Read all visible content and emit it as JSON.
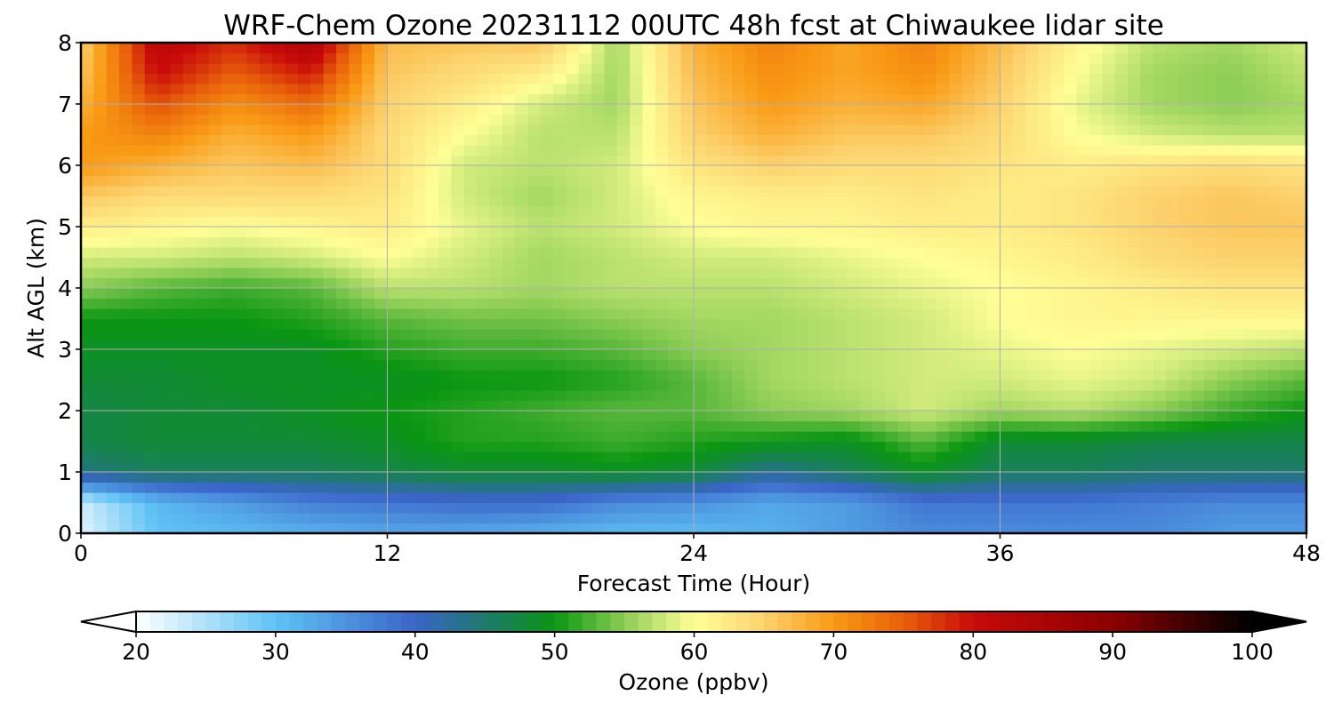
{
  "chart_data": {
    "type": "heatmap",
    "title": "WRF-Chem Ozone  20231112 00UTC 48h fcst at Chiwaukee lidar site",
    "xlabel": "Forecast Time (Hour)",
    "ylabel": "Alt AGL (km)",
    "xlim": [
      0,
      48
    ],
    "ylim": [
      0,
      8
    ],
    "x_ticks": [
      "0",
      "12",
      "24",
      "36",
      "48"
    ],
    "x_tick_values": [
      0,
      12,
      24,
      36,
      48
    ],
    "y_ticks": [
      "0",
      "1",
      "2",
      "3",
      "4",
      "5",
      "6",
      "7",
      "8"
    ],
    "y_tick_values": [
      0,
      1,
      2,
      3,
      4,
      5,
      6,
      7,
      8
    ],
    "grid": true,
    "x": [
      0,
      3,
      6,
      9,
      12,
      15,
      18,
      21,
      24,
      27,
      30,
      33,
      36,
      39,
      42,
      45,
      48
    ],
    "y": [
      0,
      0.5,
      1,
      1.5,
      2,
      2.5,
      3,
      3.5,
      4,
      4.5,
      5,
      5.5,
      6,
      6.5,
      7,
      7.5,
      8
    ],
    "z": [
      [
        22,
        30,
        31,
        32,
        33,
        33,
        32,
        31,
        31,
        32,
        34,
        36,
        36,
        36,
        36,
        34,
        34
      ],
      [
        23,
        31,
        34,
        37,
        38,
        39,
        39,
        36,
        35,
        33,
        34,
        38,
        38,
        38,
        37,
        36,
        36
      ],
      [
        44,
        46,
        46,
        46,
        47,
        48,
        48,
        49,
        48,
        43,
        46,
        49,
        46,
        46,
        45,
        45,
        45
      ],
      [
        47,
        48,
        48,
        48,
        49,
        51,
        51,
        52,
        51,
        50,
        49,
        53,
        48,
        48,
        47,
        47,
        47
      ],
      [
        47,
        48,
        48,
        49,
        50,
        51,
        52,
        53,
        53,
        55,
        56,
        58,
        56,
        57,
        55,
        52,
        50
      ],
      [
        48,
        48,
        49,
        49,
        49,
        50,
        50,
        51,
        53,
        56,
        57,
        58,
        58,
        59,
        58,
        55,
        53
      ],
      [
        49,
        49,
        49,
        49,
        51,
        52,
        52,
        53,
        55,
        56,
        57,
        58,
        59,
        60,
        59,
        58,
        57
      ],
      [
        50,
        50,
        50,
        51,
        53,
        54,
        54,
        55,
        56,
        56,
        57,
        58,
        60,
        61,
        61,
        61,
        61
      ],
      [
        55,
        53,
        52,
        53,
        57,
        57,
        56,
        57,
        57,
        57,
        58,
        59,
        60,
        61,
        62,
        63,
        63
      ],
      [
        58,
        58,
        57,
        58,
        60,
        58,
        56,
        57,
        58,
        58,
        59,
        60,
        61,
        62,
        64,
        65,
        65
      ],
      [
        62,
        61,
        60,
        61,
        62,
        59,
        57,
        58,
        60,
        61,
        61,
        62,
        62,
        63,
        65,
        66,
        66
      ],
      [
        66,
        64,
        64,
        64,
        63,
        58,
        56,
        58,
        61,
        62,
        62,
        63,
        62,
        63,
        65,
        66,
        65
      ],
      [
        70,
        68,
        66,
        67,
        64,
        58,
        57,
        58,
        63,
        65,
        64,
        64,
        63,
        62,
        63,
        64,
        63
      ],
      [
        70,
        72,
        68,
        70,
        64,
        60,
        57,
        57,
        65,
        68,
        66,
        66,
        64,
        60,
        58,
        57,
        57
      ],
      [
        68,
        76,
        71,
        74,
        65,
        62,
        58,
        56,
        66,
        70,
        68,
        69,
        65,
        59,
        56,
        55,
        56
      ],
      [
        66,
        80,
        75,
        79,
        66,
        64,
        62,
        56,
        67,
        71,
        69,
        71,
        66,
        60,
        56,
        55,
        57
      ],
      [
        65,
        82,
        78,
        84,
        67,
        66,
        66,
        56,
        68,
        72,
        69,
        72,
        67,
        61,
        57,
        56,
        58
      ]
    ],
    "colorbar": {
      "label": "Ozone  (ppbv)",
      "min": 20,
      "max": 100,
      "extend": "both",
      "ticks": [
        "20",
        "30",
        "40",
        "50",
        "60",
        "70",
        "80",
        "90",
        "100"
      ],
      "tick_values": [
        20,
        30,
        40,
        50,
        60,
        70,
        80,
        90,
        100
      ],
      "colormap_stops": [
        {
          "value": 20,
          "color": "#ffffff"
        },
        {
          "value": 30,
          "color": "#5fc3f5"
        },
        {
          "value": 40,
          "color": "#3a64c8"
        },
        {
          "value": 45,
          "color": "#1e7a6e"
        },
        {
          "value": 50,
          "color": "#0a9612"
        },
        {
          "value": 55,
          "color": "#8ccd55"
        },
        {
          "value": 60,
          "color": "#ffff96"
        },
        {
          "value": 65,
          "color": "#fcd26e"
        },
        {
          "value": 70,
          "color": "#f99a14"
        },
        {
          "value": 75,
          "color": "#e8600a"
        },
        {
          "value": 80,
          "color": "#c80a0a"
        },
        {
          "value": 90,
          "color": "#8c0000"
        },
        {
          "value": 100,
          "color": "#000000"
        }
      ],
      "under_color": "#ffffff",
      "over_color": "#000000"
    }
  }
}
